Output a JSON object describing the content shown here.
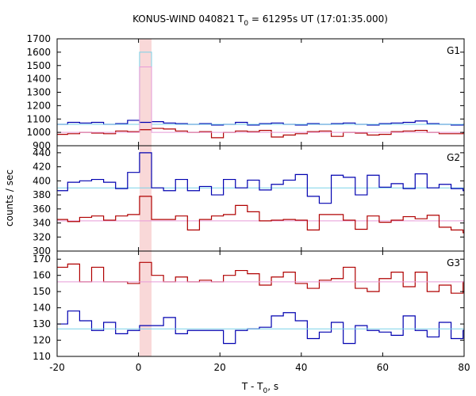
{
  "title_main": "KONUS-WIND 040821 T",
  "title_sub": "0",
  "title_rest": " = 61295s UT (17:01:35.000)",
  "ylabel": "counts / sec",
  "xlabel_main": "T - T",
  "xlabel_sub": "0",
  "xlabel_rest": ", s",
  "colors": {
    "red": "#b00000",
    "blue": "#0000b0",
    "cyan": "#7ad2e8",
    "pink": "#e89ad8",
    "highlight": "#f9d8d8"
  },
  "chart_data": {
    "type": "line",
    "x_ticks": [
      -20,
      0,
      20,
      40,
      60,
      80
    ],
    "xlim": [
      -20,
      80
    ],
    "bin_edges": [
      -20.352,
      -17.408,
      -14.464,
      -11.52,
      -8.576,
      -5.632,
      -2.688,
      0.256,
      3.2,
      6.144,
      9.088,
      12.032,
      14.976,
      17.92,
      20.864,
      23.808,
      26.752,
      29.696,
      32.64,
      35.584,
      38.528,
      41.472,
      44.416,
      47.36,
      50.304,
      53.248,
      56.192,
      59.136,
      62.08,
      65.024,
      67.968,
      70.912,
      73.856,
      76.8,
      79.744,
      82.688
    ],
    "highlight_interval": [
      0.256,
      3.2
    ],
    "panels": [
      {
        "label": "G1",
        "ylim": [
          900,
          1700
        ],
        "yticks": [
          900,
          1000,
          1100,
          1200,
          1300,
          1400,
          1500,
          1600,
          1700
        ],
        "series": [
          {
            "color": "blue",
            "values": [
              1060,
              1075,
              1070,
              1075,
              1060,
              1065,
              1090,
              1075,
              1080,
              1070,
              1065,
              1060,
              1065,
              1055,
              1060,
              1075,
              1055,
              1065,
              1070,
              1060,
              1055,
              1065,
              1060,
              1065,
              1070,
              1060,
              1055,
              1065,
              1070,
              1075,
              1085,
              1065,
              1060,
              1055,
              1060
            ]
          },
          {
            "color": "red",
            "values": [
              985,
              990,
              1000,
              995,
              990,
              1010,
              1005,
              1020,
              1030,
              1025,
              1010,
              1000,
              1005,
              960,
              1000,
              1010,
              1005,
              1015,
              965,
              980,
              990,
              1005,
              1010,
              970,
              1000,
              995,
              980,
              985,
              1005,
              1010,
              1015,
              1000,
              990,
              990,
              1000
            ]
          },
          {
            "color": "cyan",
            "values": [
              1060,
              1060,
              1060,
              1060,
              1060,
              1060,
              1060,
              1600,
              1060,
              1060,
              1060,
              1060,
              1060,
              1060,
              1060,
              1060,
              1060,
              1060,
              1060,
              1060,
              1060,
              1060,
              1060,
              1060,
              1060,
              1060,
              1060,
              1060,
              1060,
              1060,
              1060,
              1060,
              1060,
              1060,
              1060
            ]
          },
          {
            "color": "pink",
            "values": [
              1000,
              1000,
              1000,
              1000,
              1000,
              1000,
              1000,
              1490,
              1000,
              1000,
              1000,
              1000,
              1000,
              1000,
              1000,
              1000,
              1000,
              1000,
              1000,
              1000,
              1000,
              1000,
              1000,
              1000,
              1000,
              1000,
              1000,
              1000,
              1000,
              1000,
              1000,
              1000,
              1000,
              1000,
              1000
            ]
          }
        ]
      },
      {
        "label": "G2",
        "ylim": [
          300,
          450
        ],
        "yticks": [
          300,
          320,
          340,
          360,
          380,
          400,
          420,
          440
        ],
        "series": [
          {
            "color": "cyan",
            "values": [
              390,
              390,
              390,
              390,
              390,
              390,
              390,
              390,
              390,
              390,
              390,
              390,
              390,
              390,
              390,
              390,
              390,
              390,
              390,
              390,
              390,
              390,
              390,
              390,
              390,
              390,
              390,
              390,
              390,
              390,
              390,
              390,
              390,
              390,
              390
            ]
          },
          {
            "color": "pink",
            "values": [
              343,
              343,
              343,
              343,
              343,
              343,
              343,
              343,
              343,
              343,
              343,
              343,
              343,
              343,
              343,
              343,
              343,
              343,
              343,
              343,
              343,
              343,
              343,
              343,
              343,
              343,
              343,
              343,
              343,
              343,
              343,
              343,
              343,
              343,
              343
            ]
          },
          {
            "color": "blue",
            "values": [
              386,
              398,
              400,
              402,
              398,
              389,
              412,
              440,
              390,
              386,
              402,
              386,
              392,
              380,
              402,
              390,
              401,
              387,
              395,
              401,
              409,
              378,
              368,
              408,
              405,
              380,
              408,
              391,
              396,
              389,
              410,
              390,
              395,
              389,
              386
            ]
          },
          {
            "color": "red",
            "values": [
              345,
              342,
              348,
              350,
              344,
              350,
              352,
              378,
              345,
              345,
              350,
              330,
              345,
              350,
              352,
              365,
              356,
              343,
              344,
              345,
              344,
              330,
              352,
              352,
              344,
              331,
              350,
              341,
              344,
              349,
              346,
              351,
              334,
              330,
              326
            ]
          }
        ]
      },
      {
        "label": "G3",
        "ylim": [
          110,
          175
        ],
        "yticks": [
          110,
          120,
          130,
          140,
          150,
          160,
          170
        ],
        "series": [
          {
            "color": "red",
            "values": [
              165,
              167,
              156,
              165,
              156,
              156,
              155,
              168,
              160,
              156,
              159,
              156,
              157,
              156,
              160,
              163,
              161,
              154,
              159,
              162,
              155,
              152,
              157,
              158,
              165,
              152,
              150,
              158,
              162,
              153,
              162,
              150,
              154,
              149,
              156
            ]
          },
          {
            "color": "blue",
            "values": [
              130,
              138,
              132,
              126,
              131,
              124,
              126,
              129,
              129,
              134,
              124,
              126,
              126,
              126,
              118,
              126,
              127,
              128,
              135,
              137,
              132,
              121,
              125,
              131,
              118,
              129,
              126,
              125,
              123,
              135,
              126,
              122,
              131,
              121,
              126
            ]
          },
          {
            "color": "cyan",
            "values": [
              127,
              127,
              127,
              127,
              127,
              127,
              127,
              127,
              127,
              127,
              127,
              127,
              127,
              127,
              127,
              127,
              127,
              127,
              127,
              127,
              127,
              127,
              127,
              127,
              127,
              127,
              127,
              127,
              127,
              127,
              127,
              127,
              127,
              127,
              127
            ]
          },
          {
            "color": "pink",
            "values": [
              156,
              156,
              156,
              156,
              156,
              156,
              156,
              156,
              156,
              156,
              156,
              156,
              156,
              156,
              156,
              156,
              156,
              156,
              156,
              156,
              156,
              156,
              156,
              156,
              156,
              156,
              156,
              156,
              156,
              156,
              156,
              156,
              156,
              156,
              156
            ]
          }
        ]
      }
    ]
  }
}
